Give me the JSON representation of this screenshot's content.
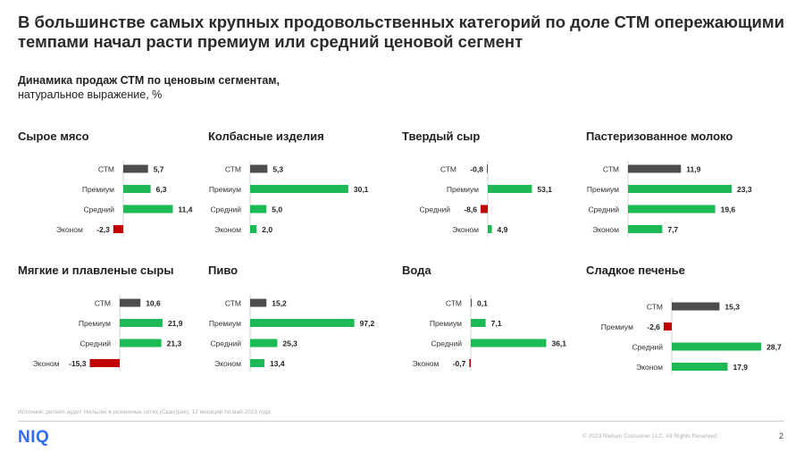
{
  "title": "В большинстве самых крупных продовольственных категорий по доле СТМ опережающими темпами начал расти премиум или средний ценовой сегмент",
  "subtitle_bold": "Динамика продаж СТМ по ценовым сегментам,",
  "subtitle_regular": "натуральное выражение, %",
  "source": "Источник: ритейл-аудит Нильсен в розничных сетях (Скантрек), 12 месяцев по май 2023 года",
  "logo": "NIQ",
  "copyright": "© 2023 Nielsen Consumer LLC. All Rights Reserved.",
  "page_number": "2",
  "colors": {
    "stm": "#4d4d4d",
    "positive": "#1db954",
    "negative": "#c00000"
  },
  "chart_data": [
    {
      "type": "bar",
      "title": "Сырое мясо",
      "categories": [
        "СТМ",
        "Премиум",
        "Средний",
        "Эконом"
      ],
      "values": [
        5.7,
        6.3,
        11.4,
        -2.3
      ],
      "labels": [
        "5,7",
        "6,3",
        "11,4",
        "-2,3"
      ]
    },
    {
      "type": "bar",
      "title": "Колбасные изделия",
      "categories": [
        "СТМ",
        "Премиум",
        "Средний",
        "Эконом"
      ],
      "values": [
        5.3,
        30.1,
        5.0,
        2.0
      ],
      "labels": [
        "5,3",
        "30,1",
        "5,0",
        "2,0"
      ]
    },
    {
      "type": "bar",
      "title": "Твердый сыр",
      "categories": [
        "СТМ",
        "Премиум",
        "Средний",
        "Эконом"
      ],
      "values": [
        -0.8,
        53.1,
        -8.6,
        4.9
      ],
      "labels": [
        "-0,8",
        "53,1",
        "-8,6",
        "4,9"
      ]
    },
    {
      "type": "bar",
      "title": "Пастеризованное молоко",
      "categories": [
        "СТМ",
        "Премиум",
        "Средний",
        "Эконом"
      ],
      "values": [
        11.9,
        23.3,
        19.6,
        7.7
      ],
      "labels": [
        "11,9",
        "23,3",
        "19,6",
        "7,7"
      ]
    },
    {
      "type": "bar",
      "title": "Мягкие и плавленые сыры",
      "categories": [
        "СТМ",
        "Премиум",
        "Средний",
        "Эконом"
      ],
      "values": [
        10.6,
        21.9,
        21.3,
        -15.3
      ],
      "labels": [
        "10,6",
        "21,9",
        "21,3",
        "-15,3"
      ]
    },
    {
      "type": "bar",
      "title": "Пиво",
      "categories": [
        "СТМ",
        "Премиум",
        "Средний",
        "Эконом"
      ],
      "values": [
        15.2,
        97.2,
        25.3,
        13.4
      ],
      "labels": [
        "15,2",
        "97,2",
        "25,3",
        "13,4"
      ]
    },
    {
      "type": "bar",
      "title": "Вода",
      "categories": [
        "СТМ",
        "Премиум",
        "Средний",
        "Эконом"
      ],
      "values": [
        0.1,
        7.1,
        36.1,
        -0.7
      ],
      "labels": [
        "0,1",
        "7,1",
        "36,1",
        "-0,7"
      ]
    },
    {
      "type": "bar",
      "title": "Сладкое печенье",
      "categories": [
        "СТМ",
        "Премиум",
        "Средний",
        "Эконом"
      ],
      "values": [
        15.3,
        -2.6,
        28.7,
        17.9
      ],
      "labels": [
        "15,3",
        "-2,6",
        "28,7",
        "17,9"
      ]
    }
  ]
}
